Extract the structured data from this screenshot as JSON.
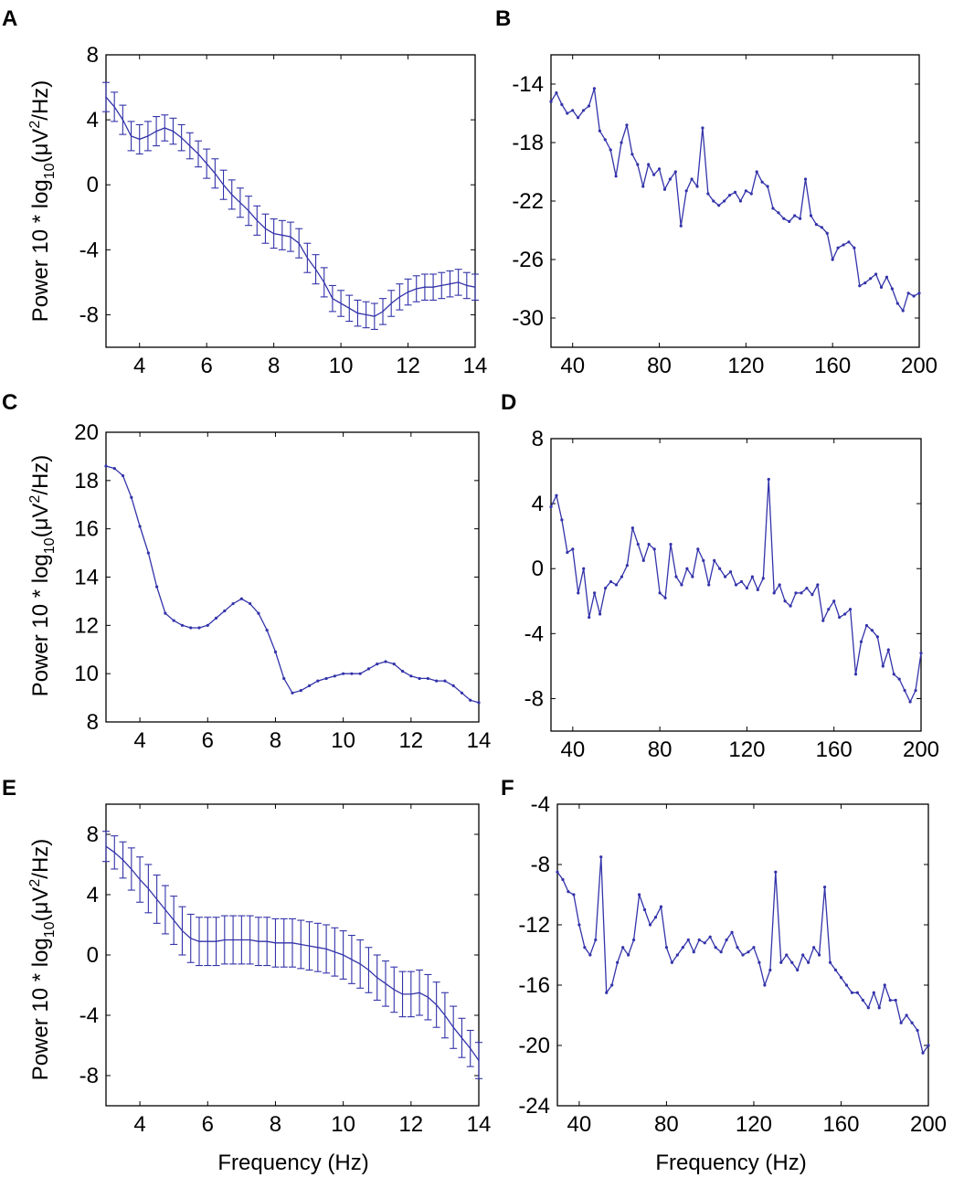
{
  "figure": {
    "ylabel_main": "Power 10 * log",
    "ylabel_sub": "10",
    "ylabel_paren": "(μV",
    "ylabel_sup": "2",
    "ylabel_tail": "/Hz)",
    "xlabel": "Frequency (Hz)",
    "series_color": "#3333aa"
  },
  "chart_data": [
    {
      "panel": "A",
      "type": "line",
      "xlim": [
        3,
        14
      ],
      "ylim": [
        -10,
        8
      ],
      "xticks": [
        4,
        6,
        8,
        10,
        12,
        14
      ],
      "yticks": [
        8,
        4,
        0,
        -4,
        -8
      ],
      "ytick_labels": [
        "8",
        "4",
        "0",
        "-4",
        "-8"
      ],
      "show_ylabel": true,
      "show_xlabel": false,
      "series": [
        {
          "name": "A",
          "x": [
            3.0,
            3.25,
            3.5,
            3.75,
            4.0,
            4.25,
            4.5,
            4.75,
            5.0,
            5.25,
            5.5,
            5.75,
            6.0,
            6.25,
            6.5,
            6.75,
            7.0,
            7.25,
            7.5,
            7.75,
            8.0,
            8.25,
            8.5,
            8.75,
            9.0,
            9.25,
            9.5,
            9.75,
            10.0,
            10.25,
            10.5,
            10.75,
            11.0,
            11.25,
            11.5,
            11.75,
            12.0,
            12.25,
            12.5,
            12.75,
            13.0,
            13.25,
            13.5,
            13.75,
            14.0
          ],
          "y": [
            5.4,
            4.8,
            4.0,
            3.0,
            2.8,
            3.0,
            3.3,
            3.5,
            3.3,
            2.9,
            2.4,
            1.9,
            1.3,
            0.7,
            0.0,
            -0.6,
            -1.1,
            -1.6,
            -2.2,
            -2.7,
            -3.0,
            -3.1,
            -3.2,
            -3.6,
            -4.5,
            -5.2,
            -6.0,
            -7.0,
            -7.3,
            -7.6,
            -7.9,
            -8.0,
            -8.1,
            -7.8,
            -7.3,
            -6.9,
            -6.6,
            -6.4,
            -6.3,
            -6.3,
            -6.2,
            -6.1,
            -6.0,
            -6.2,
            -6.3
          ],
          "err": [
            0.9,
            0.9,
            0.9,
            0.9,
            0.9,
            0.9,
            0.9,
            0.8,
            0.8,
            0.8,
            0.8,
            0.8,
            0.9,
            0.9,
            0.9,
            0.9,
            0.9,
            0.9,
            0.9,
            0.9,
            0.9,
            0.9,
            0.9,
            0.9,
            0.9,
            0.9,
            0.9,
            0.8,
            0.8,
            0.8,
            0.8,
            0.8,
            0.8,
            0.8,
            0.8,
            0.8,
            0.8,
            0.8,
            0.8,
            0.8,
            0.8,
            0.8,
            0.8,
            0.8,
            0.8
          ]
        }
      ]
    },
    {
      "panel": "B",
      "type": "line",
      "xlim": [
        30,
        200
      ],
      "ylim": [
        -32,
        -12
      ],
      "xticks": [
        40,
        80,
        120,
        160,
        200
      ],
      "yticks": [
        -14,
        -18,
        -22,
        -26,
        -30
      ],
      "ytick_labels": [
        "-14",
        "-18",
        "-22",
        "-26",
        "-30"
      ],
      "show_ylabel": false,
      "show_xlabel": false,
      "series": [
        {
          "name": "B",
          "x": [
            30,
            32.5,
            35,
            37.5,
            40,
            42.5,
            45,
            47.5,
            50,
            52.5,
            55,
            57.5,
            60,
            62.5,
            65,
            67.5,
            70,
            72.5,
            75,
            77.5,
            80,
            82.5,
            85,
            87.5,
            90,
            92.5,
            95,
            97.5,
            100,
            102.5,
            105,
            107.5,
            110,
            112.5,
            115,
            117.5,
            120,
            122.5,
            125,
            127.5,
            130,
            132.5,
            135,
            137.5,
            140,
            142.5,
            145,
            147.5,
            150,
            152.5,
            155,
            157.5,
            160,
            162.5,
            165,
            167.5,
            170,
            172.5,
            175,
            177.5,
            180,
            182.5,
            185,
            187.5,
            190,
            192.5,
            195,
            197.5,
            200
          ],
          "y": [
            -15.2,
            -14.6,
            -15.4,
            -16.0,
            -15.8,
            -16.3,
            -15.8,
            -15.5,
            -14.3,
            -17.2,
            -17.8,
            -18.5,
            -20.3,
            -18.0,
            -16.8,
            -18.8,
            -19.5,
            -21.0,
            -19.5,
            -20.2,
            -19.8,
            -21.2,
            -20.5,
            -20.0,
            -23.7,
            -21.3,
            -20.5,
            -21.0,
            -17.0,
            -21.5,
            -22.0,
            -22.3,
            -22.0,
            -21.6,
            -21.4,
            -22.0,
            -21.3,
            -21.5,
            -20.0,
            -20.7,
            -21.0,
            -22.5,
            -22.8,
            -23.2,
            -23.4,
            -23.0,
            -23.2,
            -20.5,
            -23.0,
            -23.6,
            -23.8,
            -24.2,
            -26.0,
            -25.2,
            -25.0,
            -24.8,
            -25.2,
            -27.8,
            -27.6,
            -27.3,
            -27.0,
            -27.9,
            -27.2,
            -28.0,
            -29.0,
            -29.5,
            -28.3,
            -28.5,
            -28.3
          ]
        }
      ]
    },
    {
      "panel": "C",
      "type": "line",
      "xlim": [
        3,
        14
      ],
      "ylim": [
        8,
        20
      ],
      "xticks": [
        4,
        6,
        8,
        10,
        12,
        14
      ],
      "yticks": [
        20,
        18,
        16,
        14,
        12,
        10,
        8
      ],
      "ytick_labels": [
        "20",
        "18",
        "16",
        "14",
        "12",
        "10",
        "8"
      ],
      "show_ylabel": true,
      "show_xlabel": false,
      "series": [
        {
          "name": "C",
          "x": [
            3.0,
            3.25,
            3.5,
            3.75,
            4.0,
            4.25,
            4.5,
            4.75,
            5.0,
            5.25,
            5.5,
            5.75,
            6.0,
            6.25,
            6.5,
            6.75,
            7.0,
            7.25,
            7.5,
            7.75,
            8.0,
            8.25,
            8.5,
            8.75,
            9.0,
            9.25,
            9.5,
            9.75,
            10.0,
            10.25,
            10.5,
            10.75,
            11.0,
            11.25,
            11.5,
            11.75,
            12.0,
            12.25,
            12.5,
            12.75,
            13.0,
            13.25,
            13.5,
            13.75,
            14.0
          ],
          "y": [
            18.6,
            18.5,
            18.2,
            17.3,
            16.1,
            15.0,
            13.6,
            12.5,
            12.2,
            12.0,
            11.9,
            11.9,
            12.0,
            12.3,
            12.6,
            12.9,
            13.1,
            12.9,
            12.5,
            11.8,
            10.9,
            9.8,
            9.2,
            9.3,
            9.5,
            9.7,
            9.8,
            9.9,
            10.0,
            10.0,
            10.0,
            10.2,
            10.4,
            10.5,
            10.4,
            10.1,
            9.9,
            9.8,
            9.8,
            9.7,
            9.7,
            9.5,
            9.2,
            8.9,
            8.8
          ]
        }
      ]
    },
    {
      "panel": "D",
      "type": "line",
      "xlim": [
        30,
        200
      ],
      "ylim": [
        -10,
        8
      ],
      "xticks": [
        40,
        80,
        120,
        160,
        200
      ],
      "yticks": [
        8,
        4,
        0,
        -4,
        -8
      ],
      "ytick_labels": [
        "8",
        "4",
        "0",
        "-4",
        "-8"
      ],
      "show_ylabel": false,
      "show_xlabel": false,
      "series": [
        {
          "name": "D",
          "x": [
            30,
            32.5,
            35,
            37.5,
            40,
            42.5,
            45,
            47.5,
            50,
            52.5,
            55,
            57.5,
            60,
            62.5,
            65,
            67.5,
            70,
            72.5,
            75,
            77.5,
            80,
            82.5,
            85,
            87.5,
            90,
            92.5,
            95,
            97.5,
            100,
            102.5,
            105,
            107.5,
            110,
            112.5,
            115,
            117.5,
            120,
            122.5,
            125,
            127.5,
            130,
            132.5,
            135,
            137.5,
            140,
            142.5,
            145,
            147.5,
            150,
            152.5,
            155,
            157.5,
            160,
            162.5,
            165,
            167.5,
            170,
            172.5,
            175,
            177.5,
            180,
            182.5,
            185,
            187.5,
            190,
            192.5,
            195,
            197.5,
            200
          ],
          "y": [
            3.8,
            4.5,
            3.0,
            1.0,
            1.2,
            -1.5,
            0.0,
            -3.0,
            -1.5,
            -2.8,
            -1.2,
            -0.8,
            -1.0,
            -0.5,
            0.2,
            2.5,
            1.5,
            0.5,
            1.5,
            1.2,
            -1.5,
            -1.8,
            1.5,
            -0.5,
            -1.0,
            0.0,
            -0.5,
            1.2,
            0.5,
            -1.0,
            0.5,
            0.0,
            -0.5,
            -0.2,
            -1.0,
            -0.8,
            -1.2,
            -0.5,
            -1.3,
            -0.6,
            5.5,
            -1.5,
            -1.0,
            -2.0,
            -2.3,
            -1.5,
            -1.5,
            -1.2,
            -1.6,
            -1.0,
            -3.2,
            -2.5,
            -2.0,
            -3.0,
            -2.8,
            -2.5,
            -6.5,
            -4.5,
            -3.5,
            -3.8,
            -4.2,
            -6.0,
            -5.0,
            -6.5,
            -6.8,
            -7.5,
            -8.2,
            -7.5,
            -5.2
          ]
        }
      ]
    },
    {
      "panel": "E",
      "type": "line",
      "xlim": [
        3,
        14
      ],
      "ylim": [
        -10,
        10
      ],
      "xticks": [
        4,
        6,
        8,
        10,
        12,
        14
      ],
      "yticks": [
        8,
        4,
        0,
        -4,
        -8
      ],
      "ytick_labels": [
        "8",
        "4",
        "0",
        "-4",
        "-8"
      ],
      "show_ylabel": true,
      "show_xlabel": true,
      "series": [
        {
          "name": "E",
          "x": [
            3.0,
            3.25,
            3.5,
            3.75,
            4.0,
            4.25,
            4.5,
            4.75,
            5.0,
            5.25,
            5.5,
            5.75,
            6.0,
            6.25,
            6.5,
            6.75,
            7.0,
            7.25,
            7.5,
            7.75,
            8.0,
            8.25,
            8.5,
            8.75,
            9.0,
            9.25,
            9.5,
            9.75,
            10.0,
            10.25,
            10.5,
            10.75,
            11.0,
            11.25,
            11.5,
            11.75,
            12.0,
            12.25,
            12.5,
            12.75,
            13.0,
            13.25,
            13.5,
            13.75,
            14.0
          ],
          "y": [
            7.2,
            6.8,
            6.3,
            5.7,
            5.0,
            4.4,
            3.7,
            3.0,
            2.3,
            1.6,
            1.1,
            0.9,
            0.9,
            0.9,
            1.0,
            1.0,
            1.0,
            1.0,
            0.9,
            0.9,
            0.8,
            0.8,
            0.8,
            0.7,
            0.6,
            0.5,
            0.4,
            0.2,
            0.0,
            -0.3,
            -0.6,
            -1.0,
            -1.5,
            -1.9,
            -2.3,
            -2.6,
            -2.6,
            -2.5,
            -2.8,
            -3.3,
            -4.0,
            -4.8,
            -5.5,
            -6.2,
            -7.0
          ],
          "err": [
            1.0,
            1.1,
            1.2,
            1.4,
            1.5,
            1.6,
            1.6,
            1.6,
            1.6,
            1.6,
            1.6,
            1.6,
            1.6,
            1.6,
            1.6,
            1.6,
            1.6,
            1.6,
            1.6,
            1.6,
            1.6,
            1.6,
            1.6,
            1.6,
            1.6,
            1.6,
            1.6,
            1.6,
            1.6,
            1.6,
            1.6,
            1.5,
            1.5,
            1.5,
            1.5,
            1.5,
            1.5,
            1.5,
            1.5,
            1.5,
            1.5,
            1.4,
            1.3,
            1.2,
            1.2
          ]
        }
      ]
    },
    {
      "panel": "F",
      "type": "line",
      "xlim": [
        30,
        200
      ],
      "ylim": [
        -24,
        -4
      ],
      "xticks": [
        40,
        80,
        120,
        160,
        200
      ],
      "yticks": [
        -4,
        -8,
        -12,
        -16,
        -20,
        -24
      ],
      "ytick_labels": [
        "-4",
        "-8",
        "-12",
        "-16",
        "-20",
        "-24"
      ],
      "show_ylabel": false,
      "show_xlabel": true,
      "series": [
        {
          "name": "F",
          "x": [
            30,
            32.5,
            35,
            37.5,
            40,
            42.5,
            45,
            47.5,
            50,
            52.5,
            55,
            57.5,
            60,
            62.5,
            65,
            67.5,
            70,
            72.5,
            75,
            77.5,
            80,
            82.5,
            85,
            87.5,
            90,
            92.5,
            95,
            97.5,
            100,
            102.5,
            105,
            107.5,
            110,
            112.5,
            115,
            117.5,
            120,
            122.5,
            125,
            127.5,
            130,
            132.5,
            135,
            137.5,
            140,
            142.5,
            145,
            147.5,
            150,
            152.5,
            155,
            157.5,
            160,
            162.5,
            165,
            167.5,
            170,
            172.5,
            175,
            177.5,
            180,
            182.5,
            185,
            187.5,
            190,
            192.5,
            195,
            197.5,
            200
          ],
          "y": [
            -8.5,
            -9.0,
            -9.8,
            -10.0,
            -12.0,
            -13.5,
            -14.0,
            -13.0,
            -7.5,
            -16.5,
            -16.0,
            -14.5,
            -13.5,
            -14.0,
            -13.0,
            -10.0,
            -11.0,
            -12.0,
            -11.5,
            -10.8,
            -13.5,
            -14.5,
            -14.0,
            -13.5,
            -13.0,
            -13.8,
            -13.0,
            -13.2,
            -12.8,
            -13.5,
            -13.8,
            -13.0,
            -12.5,
            -13.5,
            -14.0,
            -13.8,
            -13.5,
            -14.5,
            -16.0,
            -15.0,
            -8.5,
            -14.5,
            -14.0,
            -14.5,
            -15.0,
            -14.0,
            -14.5,
            -13.5,
            -14.0,
            -9.5,
            -14.5,
            -15.0,
            -15.5,
            -16.0,
            -16.5,
            -16.5,
            -17.0,
            -17.5,
            -16.5,
            -17.5,
            -16.0,
            -17.0,
            -17.0,
            -18.5,
            -18.0,
            -18.5,
            -19.0,
            -20.5,
            -20.0
          ]
        }
      ]
    }
  ]
}
